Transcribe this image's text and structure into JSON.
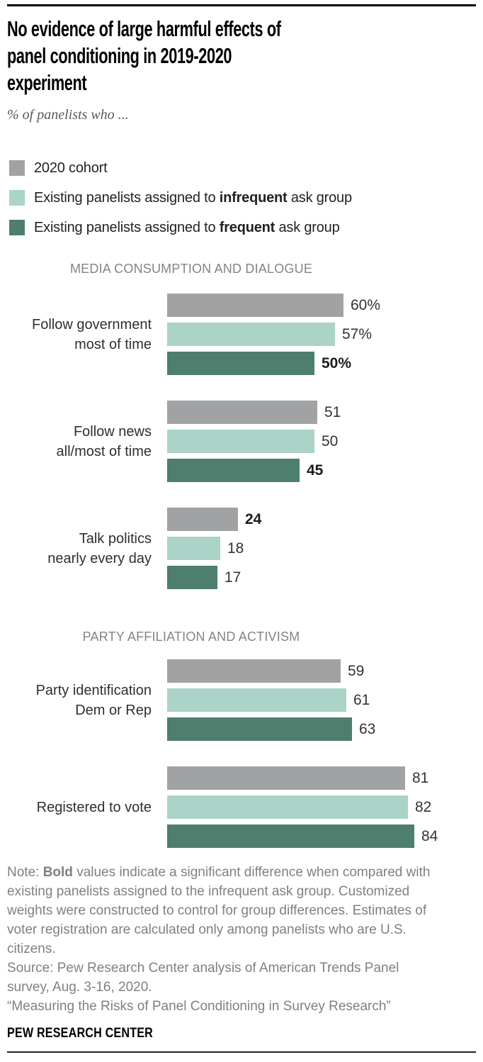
{
  "header": {
    "title_lines": [
      "No evidence of large harmful effects of",
      "panel conditioning in 2019-2020",
      "experiment"
    ],
    "subtitle": "% of panelists who ..."
  },
  "legend": {
    "items": [
      {
        "label_pre": "2020 cohort",
        "label_bold": "",
        "label_post": "",
        "color": "#a1a2a4"
      },
      {
        "label_pre": "Existing panelists assigned to ",
        "label_bold": "infrequent",
        "label_post": " ask group",
        "color": "#abd3c8"
      },
      {
        "label_pre": "Existing panelists assigned to ",
        "label_bold": "frequent",
        "label_post": " ask group",
        "color": "#4d7e6e"
      }
    ]
  },
  "chart_data": {
    "type": "bar",
    "orientation": "horizontal",
    "title": "No evidence of large harmful effects of panel conditioning in 2019-2020 experiment",
    "subtitle": "% of panelists who ...",
    "unit": "percent",
    "xlim": [
      0,
      100
    ],
    "grid": false,
    "legend_position": "top-left",
    "series_names": [
      "2020 cohort",
      "Existing panelists assigned to infrequent ask group",
      "Existing panelists assigned to frequent ask group"
    ],
    "series_colors": [
      "#a1a2a4",
      "#abd3c8",
      "#4d7e6e"
    ],
    "bold_means": "significant difference vs. infrequent ask group",
    "sections": [
      {
        "header": "MEDIA CONSUMPTION AND DIALOGUE",
        "groups": [
          {
            "label_lines": [
              "Follow government",
              "most of time"
            ],
            "bars": [
              {
                "value": 60,
                "display": "60%",
                "bold": false
              },
              {
                "value": 57,
                "display": "57%",
                "bold": false
              },
              {
                "value": 50,
                "display": "50%",
                "bold": true
              }
            ]
          },
          {
            "label_lines": [
              "Follow news",
              "all/most of time"
            ],
            "bars": [
              {
                "value": 51,
                "display": "51",
                "bold": false
              },
              {
                "value": 50,
                "display": "50",
                "bold": false
              },
              {
                "value": 45,
                "display": "45",
                "bold": true
              }
            ]
          },
          {
            "label_lines": [
              "Talk politics",
              "nearly every day"
            ],
            "bars": [
              {
                "value": 24,
                "display": "24",
                "bold": true
              },
              {
                "value": 18,
                "display": "18",
                "bold": false
              },
              {
                "value": 17,
                "display": "17",
                "bold": false
              }
            ]
          }
        ]
      },
      {
        "header": "PARTY AFFILIATION AND ACTIVISM",
        "groups": [
          {
            "label_lines": [
              "Party identification",
              "Dem or Rep"
            ],
            "bars": [
              {
                "value": 59,
                "display": "59",
                "bold": false
              },
              {
                "value": 61,
                "display": "61",
                "bold": false
              },
              {
                "value": 63,
                "display": "63",
                "bold": false
              }
            ]
          },
          {
            "label_lines": [
              "Registered to vote"
            ],
            "bars": [
              {
                "value": 81,
                "display": "81",
                "bold": false
              },
              {
                "value": 82,
                "display": "82",
                "bold": false
              },
              {
                "value": 84,
                "display": "84",
                "bold": false
              }
            ]
          }
        ]
      }
    ]
  },
  "footer": {
    "note_prefix": "Note: ",
    "note_bold": "Bold",
    "note_rest": " values indicate a significant difference when compared with existing panelists assigned to the infrequent ask group. Customized weights were constructed to control for group differences. Estimates of voter registration are calculated only among panelists who are U.S. citizens.",
    "source": "Source: Pew Research Center analysis of American Trends Panel survey, Aug. 3-16, 2020.",
    "publication": "“Measuring the Risks of Panel Conditioning in Survey Research”",
    "brand": "PEW RESEARCH CENTER"
  }
}
